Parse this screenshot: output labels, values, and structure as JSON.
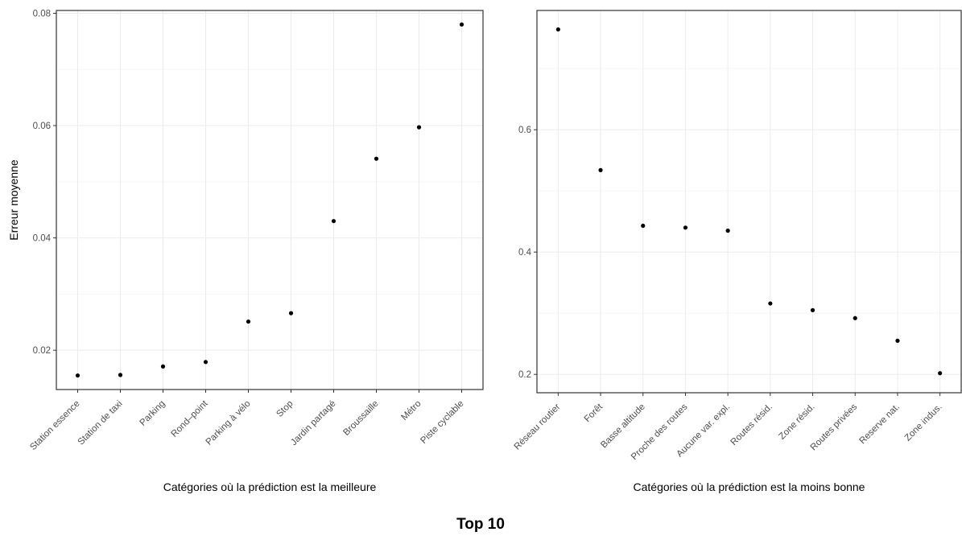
{
  "title": "Top 10",
  "chart_data": [
    {
      "type": "scatter",
      "xlabel": "Catégories où la prédiction est la meilleure",
      "ylabel": "Erreur moyenne",
      "categories": [
        "Station essence",
        "Station de taxi",
        "Parking",
        "Rond–point",
        "Parking à vélo",
        "Stop",
        "Jardin partagé",
        "Broussaille",
        "Métro",
        "Piste cyclable"
      ],
      "values": [
        0.0155,
        0.0156,
        0.0171,
        0.0179,
        0.0251,
        0.0266,
        0.043,
        0.0541,
        0.0597,
        0.078
      ],
      "ylim": [
        0.013,
        0.0805
      ],
      "yticks": [
        0.02,
        0.04,
        0.06,
        0.08
      ],
      "ytick_labels": [
        "0.02",
        "0.04",
        "0.06",
        "0.08"
      ],
      "grid": true
    },
    {
      "type": "scatter",
      "xlabel": "Catégories où la prédiction est la moins bonne",
      "ylabel": "",
      "categories": [
        "Réseau routier",
        "Forêt",
        "Basse altitude",
        "Proche des routes",
        "Aucune var. expl.",
        "Routes résid.",
        "Zone résid.",
        "Routes privées",
        "Reserve nat.",
        "Zone indus."
      ],
      "values": [
        0.764,
        0.534,
        0.443,
        0.44,
        0.435,
        0.316,
        0.305,
        0.292,
        0.255,
        0.202
      ],
      "ylim": [
        0.17,
        0.795
      ],
      "yticks": [
        0.2,
        0.4,
        0.6
      ],
      "ytick_labels": [
        "0.2",
        "0.4",
        "0.6"
      ],
      "grid": true
    }
  ]
}
